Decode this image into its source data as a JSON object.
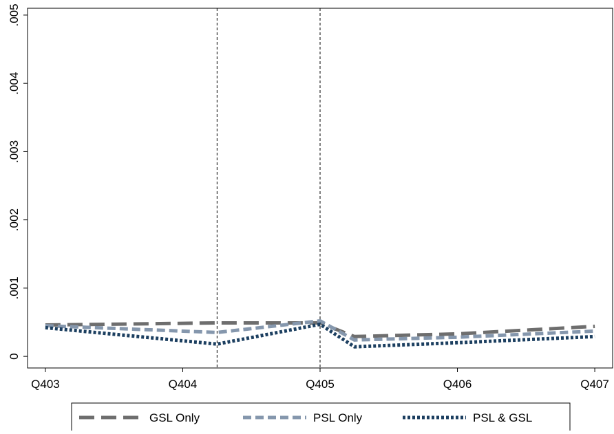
{
  "chart_data": {
    "type": "line",
    "x": [
      0,
      1.25,
      2,
      2.25,
      3,
      4
    ],
    "xlim": [
      -0.13,
      4.13
    ],
    "xticks": [
      {
        "value": 0,
        "label": "Q403"
      },
      {
        "value": 1,
        "label": "Q404"
      },
      {
        "value": 2,
        "label": "Q405"
      },
      {
        "value": 3,
        "label": "Q406"
      },
      {
        "value": 4,
        "label": "Q407"
      }
    ],
    "ylim": [
      -0.00017,
      0.0051
    ],
    "yticks": [
      0,
      {
        "value": 0.001,
        "label": ".001"
      },
      {
        "value": 0.002,
        "label": ".002"
      },
      {
        "value": 0.003,
        "label": ".003"
      },
      {
        "value": 0.004,
        "label": ".004"
      },
      {
        "value": 0.005,
        "label": ".005"
      }
    ],
    "xlines": [
      1.25,
      2
    ],
    "series": [
      {
        "name": "GSL Only",
        "color": "#6e6e6e",
        "dash": "long",
        "values": [
          0.00046,
          0.00049,
          0.00049,
          0.00029,
          0.00033,
          0.00044
        ]
      },
      {
        "name": "PSL Only",
        "color": "#8597ad",
        "dash": "medium",
        "values": [
          0.00045,
          0.00035,
          0.00052,
          0.00024,
          0.00028,
          0.00037
        ]
      },
      {
        "name": "PSL & GSL",
        "color": "#1c3f60",
        "dash": "dot",
        "values": [
          0.00042,
          0.00018,
          0.00047,
          0.00014,
          0.0002,
          0.00029
        ]
      }
    ]
  }
}
